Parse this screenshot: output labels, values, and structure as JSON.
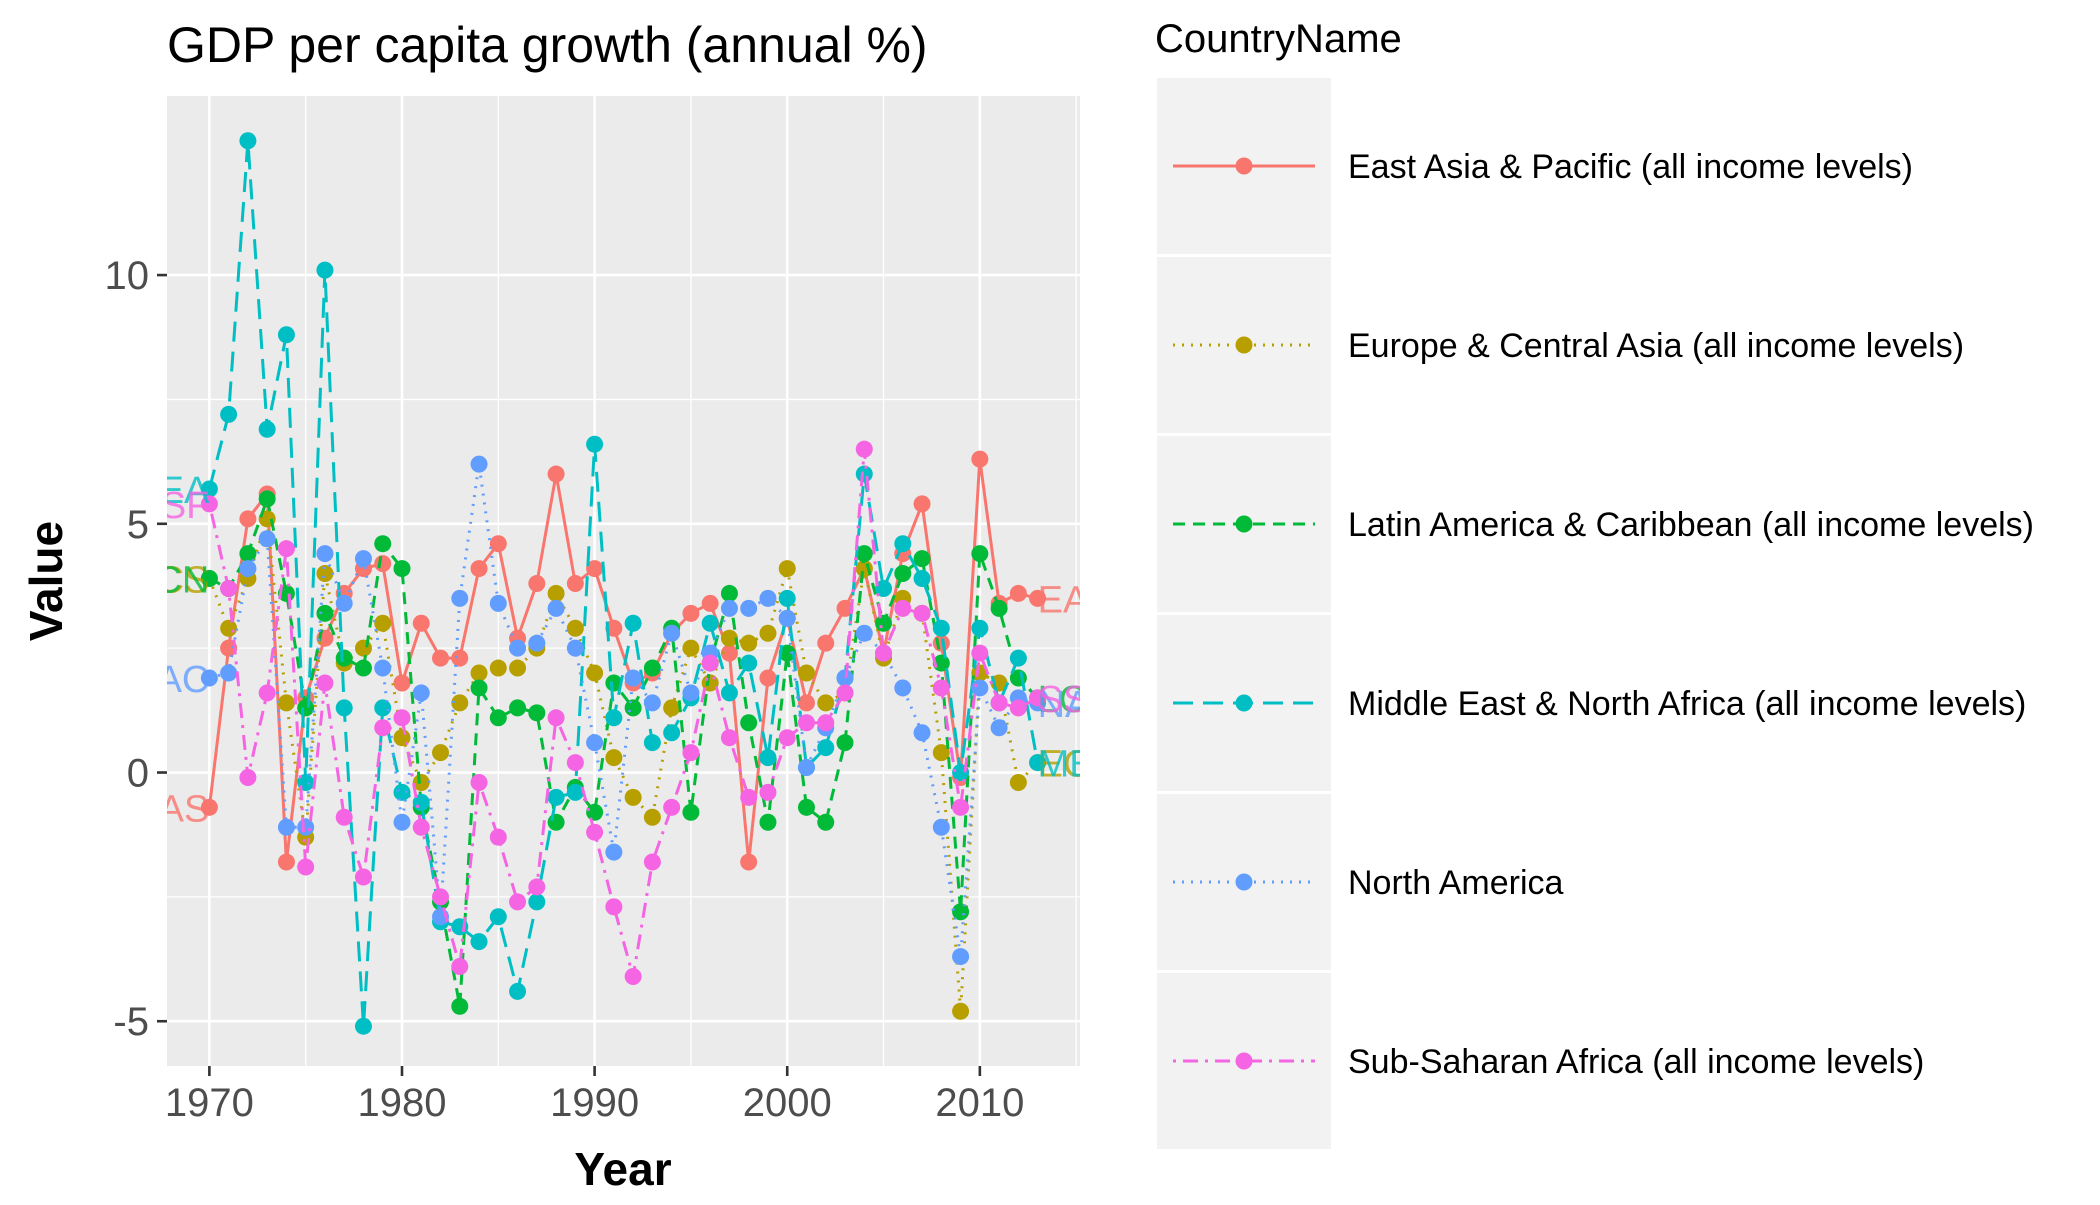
{
  "chart_data": {
    "type": "line",
    "title": "GDP per capita growth (annual %)",
    "xlabel": "Year",
    "ylabel": "Value",
    "xlim": [
      1967.8,
      2015.2
    ],
    "ylim": [
      -5.9,
      13.6
    ],
    "x_ticks": [
      1970,
      1980,
      1990,
      2000,
      2010
    ],
    "y_ticks": [
      -5,
      0,
      5,
      10
    ],
    "x_tick_labels": [
      "1970",
      "1980",
      "1990",
      "2000",
      "2010"
    ],
    "y_tick_labels": [
      "-5",
      "0",
      "5",
      "10"
    ],
    "grid": true,
    "legend": {
      "title": "CountryName",
      "position": "right"
    },
    "years": [
      1970,
      1971,
      1972,
      1973,
      1974,
      1975,
      1976,
      1977,
      1978,
      1979,
      1980,
      1981,
      1982,
      1983,
      1984,
      1985,
      1986,
      1987,
      1988,
      1989,
      1990,
      1991,
      1992,
      1993,
      1994,
      1995,
      1996,
      1997,
      1998,
      1999,
      2000,
      2001,
      2002,
      2003,
      2004,
      2005,
      2006,
      2007,
      2008,
      2009,
      2010,
      2011,
      2012,
      2013
    ],
    "series": [
      {
        "name": "East Asia & Pacific (all income levels)",
        "color": "#F8766D",
        "dash": "solid",
        "start_label": "EAS",
        "end_label": "EAS",
        "values": [
          -0.7,
          2.5,
          5.1,
          5.6,
          -1.8,
          1.5,
          2.7,
          3.6,
          4.1,
          4.2,
          1.8,
          3.0,
          2.3,
          2.3,
          4.1,
          4.6,
          2.7,
          3.8,
          6.0,
          3.8,
          4.1,
          2.9,
          1.8,
          2.0,
          2.8,
          3.2,
          3.4,
          2.4,
          -1.8,
          1.9,
          3.1,
          1.4,
          2.6,
          3.3,
          4.1,
          2.4,
          4.4,
          5.4,
          2.6,
          -0.1,
          6.3,
          3.4,
          3.6,
          3.5
        ]
      },
      {
        "name": "Europe & Central Asia (all income levels)",
        "color": "#B79F00",
        "dash": "dotted",
        "start_label": "ECS",
        "end_label": "ECS",
        "values": [
          3.9,
          2.9,
          3.9,
          5.1,
          1.4,
          -1.3,
          4.0,
          2.2,
          2.5,
          3.0,
          0.7,
          -0.2,
          0.4,
          1.4,
          2.0,
          2.1,
          2.1,
          2.5,
          3.6,
          2.9,
          2.0,
          0.3,
          -0.5,
          -0.9,
          1.3,
          2.5,
          1.8,
          2.7,
          2.6,
          2.8,
          4.1,
          2.0,
          1.4,
          1.6,
          4.1,
          2.3,
          3.5,
          3.2,
          0.4,
          -4.8,
          2.0,
          1.8,
          -0.2,
          0.2
        ]
      },
      {
        "name": "Latin America & Caribbean (all income levels)",
        "color": "#00BA38",
        "dash": "dashed",
        "start_label": "LCN",
        "end_label": "LCN",
        "values": [
          3.9,
          3.7,
          4.4,
          5.5,
          3.6,
          1.3,
          3.2,
          2.3,
          2.1,
          4.6,
          4.1,
          -0.7,
          -2.6,
          -4.7,
          1.7,
          1.1,
          1.3,
          1.2,
          -1.0,
          -0.3,
          -0.8,
          1.8,
          1.3,
          2.1,
          2.9,
          -0.8,
          2.2,
          3.6,
          1.0,
          -1.0,
          2.4,
          -0.7,
          -1.0,
          0.6,
          4.4,
          3.0,
          4.0,
          4.3,
          2.2,
          -2.8,
          4.4,
          3.3,
          1.9,
          1.5
        ]
      },
      {
        "name": "Middle East & North Africa (all income levels)",
        "color": "#00BFC4",
        "dash": "longdash",
        "start_label": "MEA",
        "end_label": "MEA",
        "values": [
          5.7,
          7.2,
          12.7,
          6.9,
          8.8,
          -0.2,
          10.1,
          1.3,
          -5.1,
          1.3,
          -0.4,
          -0.6,
          -3.0,
          -3.1,
          -3.4,
          -2.9,
          -4.4,
          -2.6,
          -0.5,
          -0.4,
          6.6,
          1.1,
          3.0,
          0.6,
          0.8,
          1.5,
          3.0,
          1.6,
          2.2,
          0.3,
          3.5,
          0.1,
          0.5,
          1.9,
          6.0,
          3.7,
          4.6,
          3.9,
          2.9,
          0.0,
          2.9,
          1.4,
          2.3,
          0.2
        ]
      },
      {
        "name": "North America",
        "color": "#619CFF",
        "dash": "dotted",
        "start_label": "NAC",
        "end_label": "NAC",
        "values": [
          1.9,
          2.0,
          4.1,
          4.7,
          -1.1,
          -1.1,
          4.4,
          3.4,
          4.3,
          2.1,
          -1.0,
          1.6,
          -2.9,
          3.5,
          6.2,
          3.4,
          2.5,
          2.6,
          3.3,
          2.5,
          0.6,
          -1.6,
          1.9,
          1.4,
          2.8,
          1.6,
          2.4,
          3.3,
          3.3,
          3.5,
          3.1,
          0.1,
          0.9,
          1.9,
          2.8,
          2.4,
          1.7,
          0.8,
          -1.1,
          -3.7,
          1.7,
          0.9,
          1.5,
          1.4
        ]
      },
      {
        "name": "Sub-Saharan Africa (all income levels)",
        "color": "#F564E3",
        "dash": "dotdash",
        "start_label": "SSF",
        "end_label": "SSF",
        "values": [
          5.4,
          3.7,
          -0.1,
          1.6,
          4.5,
          -1.9,
          1.8,
          -0.9,
          -2.1,
          0.9,
          1.1,
          -1.1,
          -2.5,
          -3.9,
          -0.2,
          -1.3,
          -2.6,
          -2.3,
          1.1,
          0.2,
          -1.2,
          -2.7,
          -4.1,
          -1.8,
          -0.7,
          0.4,
          2.2,
          0.7,
          -0.5,
          -0.4,
          0.7,
          1.0,
          1.0,
          1.6,
          6.5,
          2.4,
          3.3,
          3.2,
          1.7,
          -0.7,
          2.4,
          1.4,
          1.3,
          1.5
        ]
      }
    ]
  }
}
